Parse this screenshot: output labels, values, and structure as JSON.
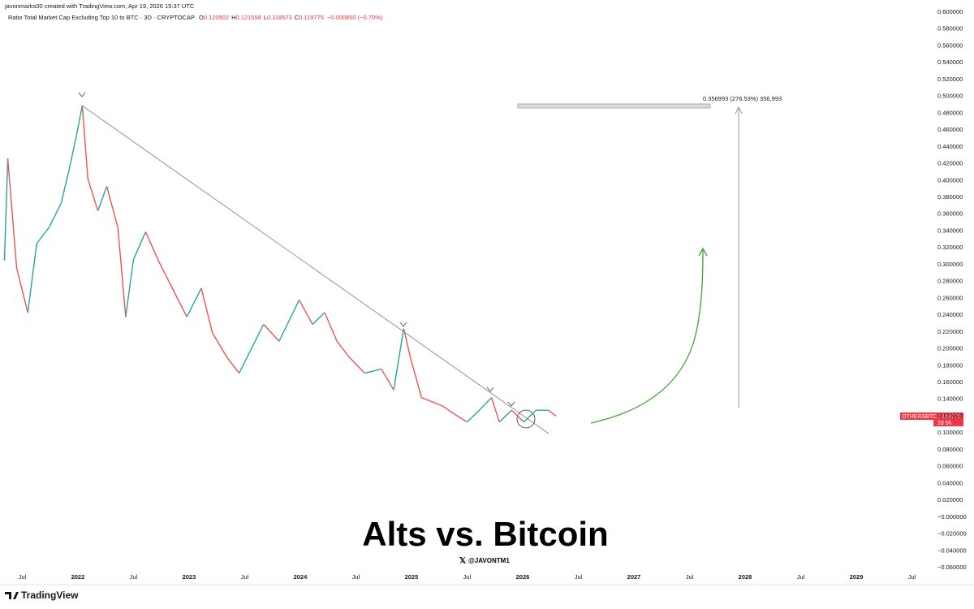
{
  "header": "javonmarks00 created with TradingView.com, Apr 19, 2026 15:37 UTC",
  "legend": {
    "title": "Ratio Total Market Cap Excluding Top 10 to BTC · 3D · CRYPTOCAP",
    "ohlc": [
      {
        "key": "O",
        "value": "0.120502"
      },
      {
        "key": "H",
        "value": "0.121558"
      },
      {
        "key": "L",
        "value": "0.118573"
      },
      {
        "key": "C",
        "value": "0.119775"
      }
    ],
    "change": "−0.000850 (−0.70%)"
  },
  "chart_data": {
    "type": "line",
    "title": "Alts vs. Bitcoin",
    "subtitle": "@JAVONTM1",
    "annotation": "0.356993 (276.53%) 356,993",
    "price_label": {
      "symbol": "OTHERSBTC",
      "value": "0.119775",
      "countdown": "2d 5h"
    },
    "up_color": "#26a69a",
    "down_color": "#ef5350",
    "grid": false,
    "x": [
      2021.34,
      2021.37,
      2021.45,
      2021.55,
      2021.63,
      2021.74,
      2021.85,
      2021.92,
      2021.99,
      2022.04,
      2022.09,
      2022.18,
      2022.26,
      2022.36,
      2022.43,
      2022.5,
      2022.61,
      2022.72,
      2022.83,
      2022.98,
      2023.11,
      2023.21,
      2023.34,
      2023.45,
      2023.56,
      2023.67,
      2023.81,
      2023.99,
      2024.11,
      2024.22,
      2024.33,
      2024.44,
      2024.58,
      2024.73,
      2024.84,
      2024.93,
      2024.99,
      2025.09,
      2025.28,
      2025.39,
      2025.5,
      2025.61,
      2025.72,
      2025.79,
      2025.9,
      2026.01,
      2026.12,
      2026.23,
      2026.3
    ],
    "series": [
      {
        "name": "OTHERSBTC",
        "values": [
          0.306,
          0.426,
          0.296,
          0.243,
          0.325,
          0.344,
          0.373,
          0.412,
          0.455,
          0.489,
          0.402,
          0.364,
          0.393,
          0.344,
          0.238,
          0.306,
          0.339,
          0.306,
          0.277,
          0.238,
          0.272,
          0.219,
          0.19,
          0.171,
          0.2,
          0.229,
          0.209,
          0.258,
          0.229,
          0.243,
          0.209,
          0.19,
          0.171,
          0.176,
          0.151,
          0.224,
          0.19,
          0.142,
          0.132,
          0.122,
          0.113,
          0.127,
          0.142,
          0.113,
          0.127,
          0.113,
          0.127,
          0.127,
          0.12
        ]
      }
    ],
    "xlim": [
      2021.3,
      2029.62
    ],
    "xticks": [
      {
        "value": 2021.5,
        "label": "Jul"
      },
      2022,
      {
        "value": 2022.5,
        "label": "Jul"
      },
      2023,
      {
        "value": 2023.5,
        "label": "Jul"
      },
      2024,
      {
        "value": 2024.5,
        "label": "Jul"
      },
      2025,
      {
        "value": 2025.5,
        "label": "Jul"
      },
      2026,
      {
        "value": 2026.5,
        "label": "Jul"
      },
      2027,
      {
        "value": 2027.5,
        "label": "Jul"
      },
      2028,
      {
        "value": 2028.5,
        "label": "Jul"
      },
      2029,
      {
        "value": 2029.5,
        "label": "Jul"
      }
    ],
    "ylim": [
      -0.06,
      0.6
    ],
    "yticks": [
      {
        "value": 0.6,
        "label": "0.600000"
      },
      {
        "value": 0.58,
        "label": "0.580000"
      },
      {
        "value": 0.56,
        "label": "0.560000"
      },
      {
        "value": 0.54,
        "label": "0.540000"
      },
      {
        "value": 0.52,
        "label": "0.520000"
      },
      {
        "value": 0.5,
        "label": "0.500000"
      },
      {
        "value": 0.48,
        "label": "0.480000"
      },
      {
        "value": 0.46,
        "label": "0.460000"
      },
      {
        "value": 0.44,
        "label": "0.440000"
      },
      {
        "value": 0.42,
        "label": "0.420000"
      },
      {
        "value": 0.4,
        "label": "0.400000"
      },
      {
        "value": 0.38,
        "label": "0.380000"
      },
      {
        "value": 0.36,
        "label": "0.360000"
      },
      {
        "value": 0.34,
        "label": "0.340000"
      },
      {
        "value": 0.32,
        "label": "0.320000"
      },
      {
        "value": 0.3,
        "label": "0.300000"
      },
      {
        "value": 0.28,
        "label": "0.280000"
      },
      {
        "value": 0.26,
        "label": "0.260000"
      },
      {
        "value": 0.24,
        "label": "0.240000"
      },
      {
        "value": 0.22,
        "label": "0.220000"
      },
      {
        "value": 0.2,
        "label": "0.200000"
      },
      {
        "value": 0.18,
        "label": "0.180000"
      },
      {
        "value": 0.16,
        "label": "0.160000"
      },
      {
        "value": 0.14,
        "label": "0.140000"
      },
      {
        "value": 0.12,
        "label": "0.120000"
      },
      {
        "value": 0.1,
        "label": "0.100000"
      },
      {
        "value": 0.08,
        "label": "0.080000"
      },
      {
        "value": 0.06,
        "label": "0.060000"
      },
      {
        "value": 0.04,
        "label": "0.040000"
      },
      {
        "value": 0.02,
        "label": "0.020000"
      },
      {
        "value": 0,
        "label": "−0.000000"
      },
      {
        "value": -0.02,
        "label": "−0.020000"
      },
      {
        "value": -0.04,
        "label": "−0.040000"
      },
      {
        "value": -0.06,
        "label": "−0.060000"
      }
    ]
  },
  "footer": {
    "brand": "TradingView"
  }
}
